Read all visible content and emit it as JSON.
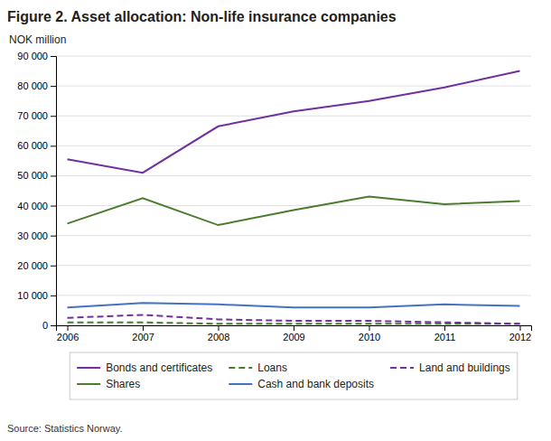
{
  "chart_data": {
    "type": "line",
    "title": "Figure 2. Asset allocation: Non-life insurance companies",
    "ylabel": "NOK million",
    "source": "Source: Statistics Norway.",
    "x": [
      2006,
      2007,
      2008,
      2009,
      2010,
      2011,
      2012
    ],
    "series": [
      {
        "name": "Bonds and certificates",
        "color": "#7030a0",
        "line_style": "solid",
        "values": [
          55500,
          51000,
          66500,
          71500,
          75000,
          79500,
          85000
        ]
      },
      {
        "name": "Shares",
        "color": "#4a7c2f",
        "line_style": "solid",
        "values": [
          34000,
          42500,
          33500,
          38500,
          43000,
          40500,
          41500
        ]
      },
      {
        "name": "Loans",
        "color": "#4a7c2f",
        "line_style": "dashed",
        "values": [
          1000,
          1000,
          500,
          500,
          500,
          500,
          500
        ]
      },
      {
        "name": "Cash and bank deposits",
        "color": "#4472c4",
        "line_style": "solid",
        "values": [
          6000,
          7500,
          7000,
          6000,
          6000,
          7000,
          6500
        ]
      },
      {
        "name": "Land and buildings",
        "color": "#7030a0",
        "line_style": "dashed",
        "values": [
          2500,
          3500,
          2000,
          1500,
          1500,
          1000,
          500
        ]
      }
    ],
    "xlim": [
      2005.85,
      2012.15
    ],
    "xticks": [
      2006,
      2007,
      2008,
      2009,
      2010,
      2011,
      2012
    ],
    "ylim": [
      0,
      90000
    ],
    "yticks": [
      0,
      {
        "value": 10000,
        "label": "10 000"
      },
      {
        "value": 20000,
        "label": "20 000"
      },
      {
        "value": 30000,
        "label": "30 000"
      },
      {
        "value": 40000,
        "label": "40 000"
      },
      {
        "value": 50000,
        "label": "50 000"
      },
      {
        "value": 60000,
        "label": "60 000"
      },
      {
        "value": 70000,
        "label": "70 000"
      },
      {
        "value": 80000,
        "label": "80 000"
      },
      {
        "value": 90000,
        "label": "90 000"
      }
    ],
    "grid": true,
    "legend": "bottom"
  }
}
